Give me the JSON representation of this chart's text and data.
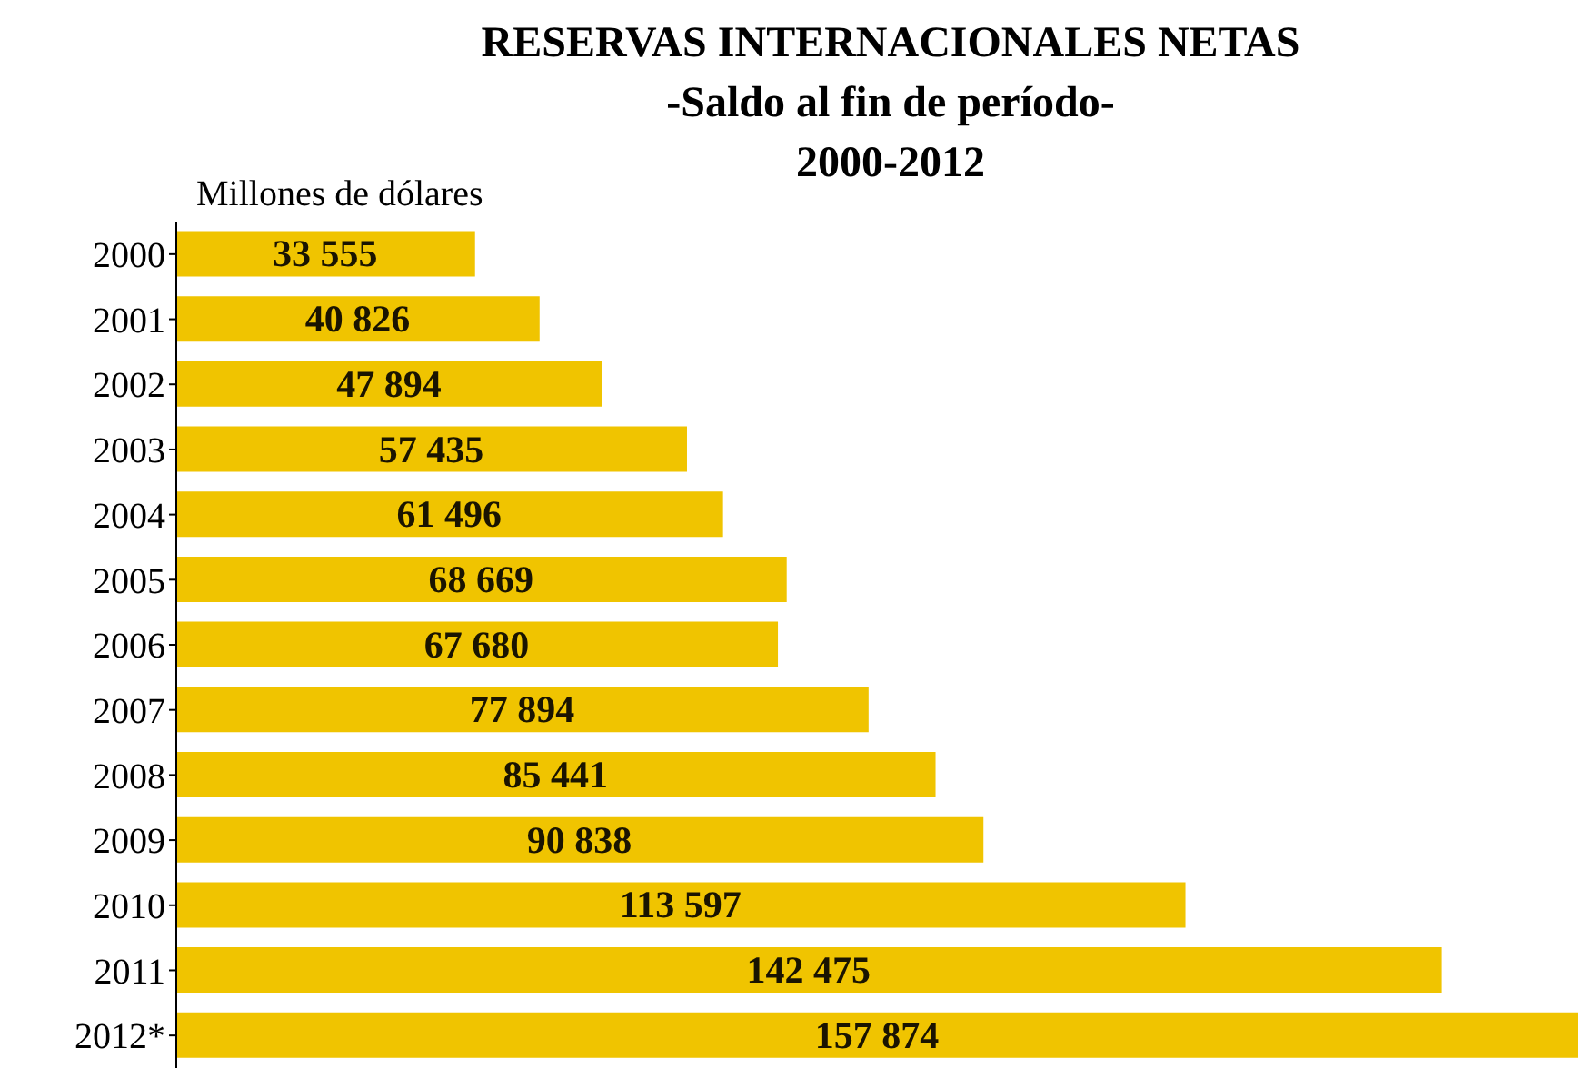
{
  "chart_data": {
    "type": "bar",
    "orientation": "horizontal",
    "title": "RESERVAS INTERNACIONALES NETAS\n-Saldo al fin de período-\n2000-2012",
    "annotations": [
      "Millones de dólares"
    ],
    "categories": [
      "2000",
      "2001",
      "2002",
      "2003",
      "2004",
      "2005",
      "2006",
      "2007",
      "2008",
      "2009",
      "2010",
      "2011",
      "2012*"
    ],
    "values": [
      33555,
      40826,
      47894,
      57435,
      61496,
      68669,
      67680,
      77894,
      85441,
      90838,
      113597,
      142475,
      157874
    ],
    "value_labels": [
      "33 555",
      "40 826",
      "47 894",
      "57 435",
      "61 496",
      "68 669",
      "67 680",
      "77 894",
      "85 441",
      "90 838",
      "113 597",
      "142 475",
      "157 874"
    ],
    "color": "#f0c400"
  }
}
